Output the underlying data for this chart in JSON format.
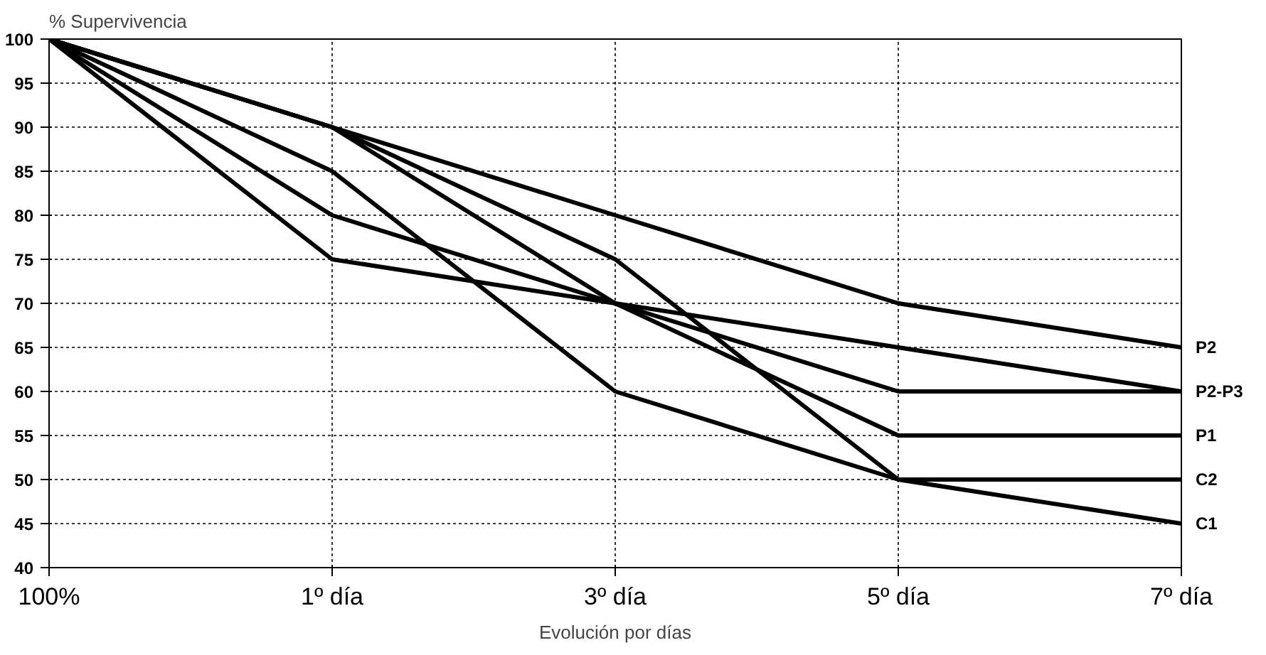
{
  "chart_data": {
    "type": "line",
    "ylabel": "% Supervivencia",
    "xlabel": "Evolución por días",
    "categories": [
      "100%",
      "1º día",
      "3º día",
      "5º día",
      "7º día"
    ],
    "series": [
      {
        "name": "P2",
        "color": "#000000",
        "values": [
          100,
          90,
          80,
          70,
          65
        ]
      },
      {
        "color": "#000000",
        "values": [
          100,
          90,
          70,
          65,
          60
        ]
      },
      {
        "name": "P2-P3",
        "color": "#000000",
        "values": [
          100,
          80,
          70,
          60,
          60
        ]
      },
      {
        "name": "P1",
        "color": "#000000",
        "values": [
          100,
          75,
          70,
          55,
          55
        ]
      },
      {
        "name": "C2",
        "color": "#000000",
        "values": [
          100,
          90,
          75,
          50,
          50
        ]
      },
      {
        "name": "C1",
        "color": "#000000",
        "values": [
          100,
          85,
          60,
          50,
          45
        ]
      }
    ],
    "ylim": [
      40,
      100
    ],
    "yticks": [
      40,
      45,
      50,
      55,
      60,
      65,
      70,
      75,
      80,
      85,
      90,
      95,
      100
    ],
    "grid": true,
    "marker": "none",
    "line_style": "solid"
  }
}
